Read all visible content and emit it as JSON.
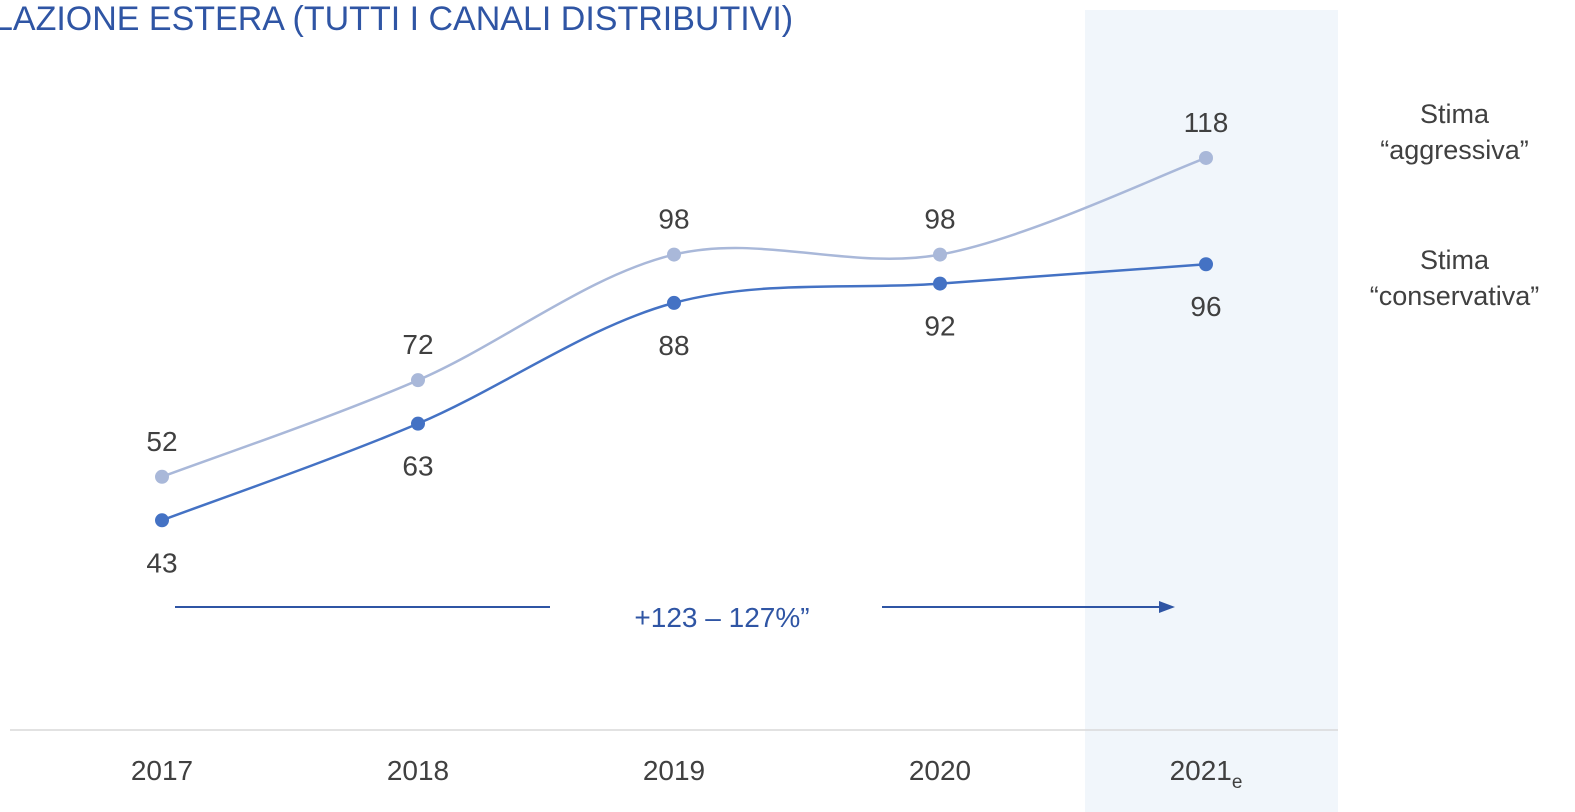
{
  "chart_data": {
    "type": "line",
    "title": "LAZIONE ESTERA (TUTTI I CANALI DISTRIBUTIVI)",
    "categories": [
      "2017",
      "2018",
      "2019",
      "2020",
      "2021"
    ],
    "estimate_marker": "e",
    "series": [
      {
        "name": "Stima “aggressiva”",
        "color": "#a9b8d9",
        "values": [
          52,
          72,
          98,
          98,
          118
        ]
      },
      {
        "name": "Stima “conservativa”",
        "color": "#4472c4",
        "values": [
          43,
          63,
          88,
          92,
          96
        ]
      }
    ],
    "annotation": "+123 – 127%”",
    "ylim": [
      0,
      130
    ]
  }
}
